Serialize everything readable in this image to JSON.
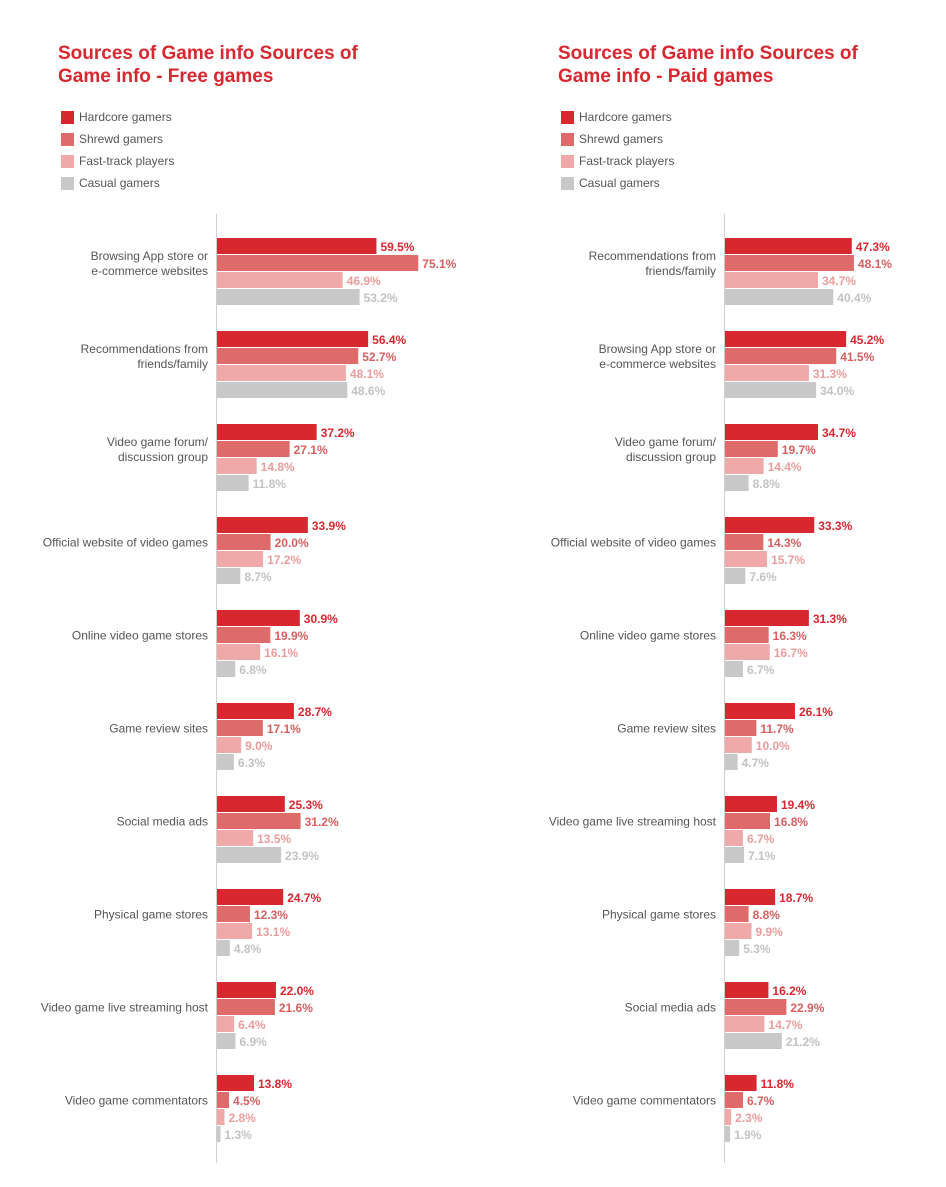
{
  "chart_data": [
    {
      "type": "bar",
      "orientation": "horizontal",
      "title": "Sources of Game info Sources of Game info - Free games",
      "title_lines": [
        "Sources of Game info Sources of",
        "Game info - Free games"
      ],
      "legend_placement": "top-left",
      "grid": false,
      "xlim": [
        0,
        100
      ],
      "value_suffix": "%",
      "categories": [
        [
          "Browsing App store or",
          "e-commerce websites"
        ],
        [
          "Recommendations from",
          "friends/family"
        ],
        [
          "Video game forum/",
          "discussion group"
        ],
        [
          "Official website of video games"
        ],
        [
          "Online video game stores"
        ],
        [
          "Game review sites"
        ],
        [
          "Social media ads"
        ],
        [
          "Physical game stores"
        ],
        [
          "Video game live streaming host"
        ],
        [
          "Video game commentators"
        ]
      ],
      "series": [
        {
          "name": "Hardcore gamers",
          "color": "#d7282f",
          "values": [
            59.5,
            56.4,
            37.2,
            33.9,
            30.9,
            28.7,
            25.3,
            24.7,
            22.0,
            13.8
          ]
        },
        {
          "name": "Shrewd gamers",
          "color": "#df6a6a",
          "values": [
            75.1,
            52.7,
            27.1,
            20.0,
            19.9,
            17.1,
            31.2,
            12.3,
            21.6,
            4.5
          ]
        },
        {
          "name": "Fast-track players",
          "color": "#efa9a9",
          "values": [
            46.9,
            48.1,
            14.8,
            17.2,
            16.1,
            9.0,
            13.5,
            13.1,
            6.4,
            2.8
          ]
        },
        {
          "name": "Casual gamers",
          "color": "#c8c8c8",
          "values": [
            53.2,
            48.6,
            11.8,
            8.7,
            6.8,
            6.3,
            23.9,
            4.8,
            6.9,
            1.3
          ]
        }
      ]
    },
    {
      "type": "bar",
      "orientation": "horizontal",
      "title": "Sources of Game info Sources of Game info - Paid games",
      "title_lines": [
        "Sources of Game info Sources of",
        "Game info - Paid games"
      ],
      "legend_placement": "top-left",
      "grid": false,
      "xlim": [
        0,
        100
      ],
      "value_suffix": "%",
      "categories": [
        [
          "Recommendations from",
          "friends/family"
        ],
        [
          "Browsing App store or",
          "e-commerce websites"
        ],
        [
          "Video game forum/",
          "discussion group"
        ],
        [
          "Official website of video games"
        ],
        [
          "Online video game stores"
        ],
        [
          "Game review sites"
        ],
        [
          "Video game live streaming host"
        ],
        [
          "Physical game stores"
        ],
        [
          "Social media ads"
        ],
        [
          "Video game commentators"
        ]
      ],
      "series": [
        {
          "name": "Hardcore gamers",
          "color": "#d7282f",
          "values": [
            47.3,
            45.2,
            34.7,
            33.3,
            31.3,
            26.1,
            19.4,
            18.7,
            16.2,
            11.8
          ]
        },
        {
          "name": "Shrewd gamers",
          "color": "#df6a6a",
          "values": [
            48.1,
            41.5,
            19.7,
            14.3,
            16.3,
            11.7,
            16.8,
            8.8,
            22.9,
            6.7
          ]
        },
        {
          "name": "Fast-track players",
          "color": "#efa9a9",
          "values": [
            34.7,
            31.3,
            14.4,
            15.7,
            16.7,
            10.0,
            6.7,
            9.9,
            14.7,
            2.3
          ]
        },
        {
          "name": "Casual gamers",
          "color": "#c8c8c8",
          "values": [
            40.4,
            34.0,
            8.8,
            7.6,
            6.7,
            4.7,
            7.1,
            5.3,
            21.2,
            1.9
          ]
        }
      ]
    }
  ]
}
